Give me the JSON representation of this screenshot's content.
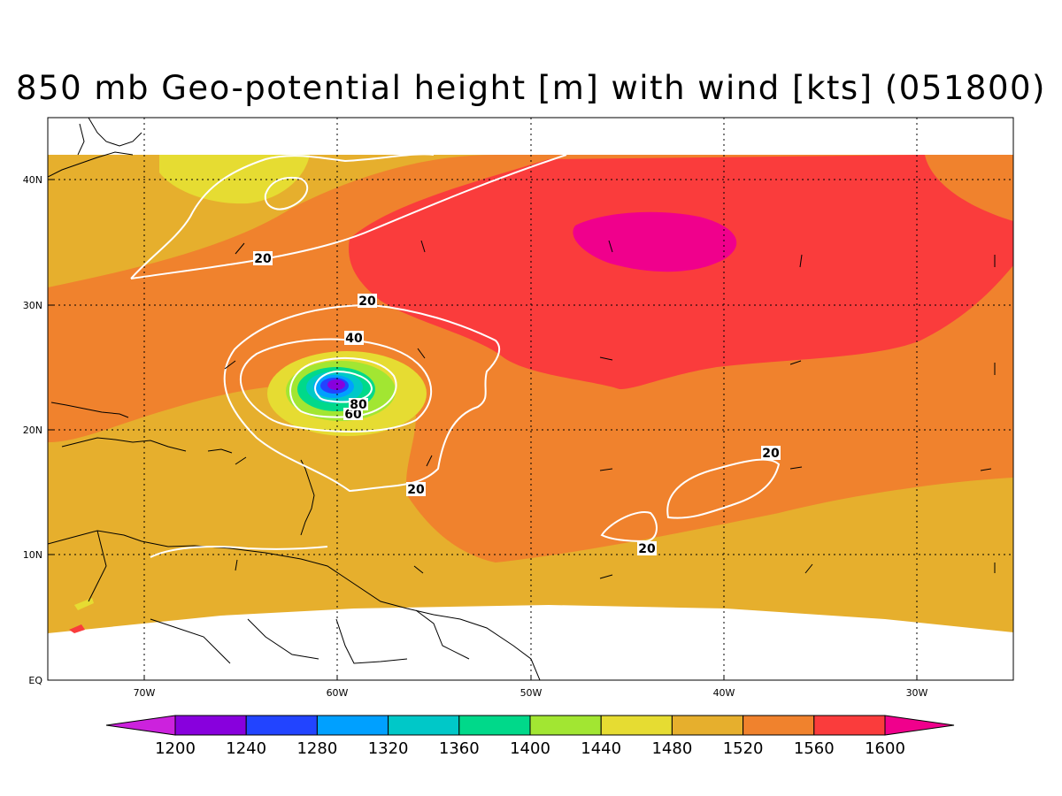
{
  "title": "850 mb Geo-potential height [m] with wind [kts] (051800)",
  "map": {
    "lon_labels": [
      "70W",
      "60W",
      "50W",
      "40W",
      "30W"
    ],
    "lat_labels": [
      "40N",
      "30N",
      "20N",
      "10N",
      "EQ"
    ]
  },
  "colorbar": {
    "levels": [
      "1200",
      "1240",
      "1280",
      "1320",
      "1360",
      "1400",
      "1440",
      "1480",
      "1520",
      "1560",
      "1600"
    ],
    "colors": [
      "#cc22dd",
      "#8800dd",
      "#2244ff",
      "#00a0ff",
      "#00c8c8",
      "#00d98a",
      "#a2e632",
      "#e6dc32",
      "#e6af2d",
      "#f0822d",
      "#fa3c3c",
      "#f0008c"
    ]
  },
  "contour_labels": [
    "20",
    "20",
    "40",
    "60",
    "80",
    "20",
    "20",
    "20"
  ]
}
